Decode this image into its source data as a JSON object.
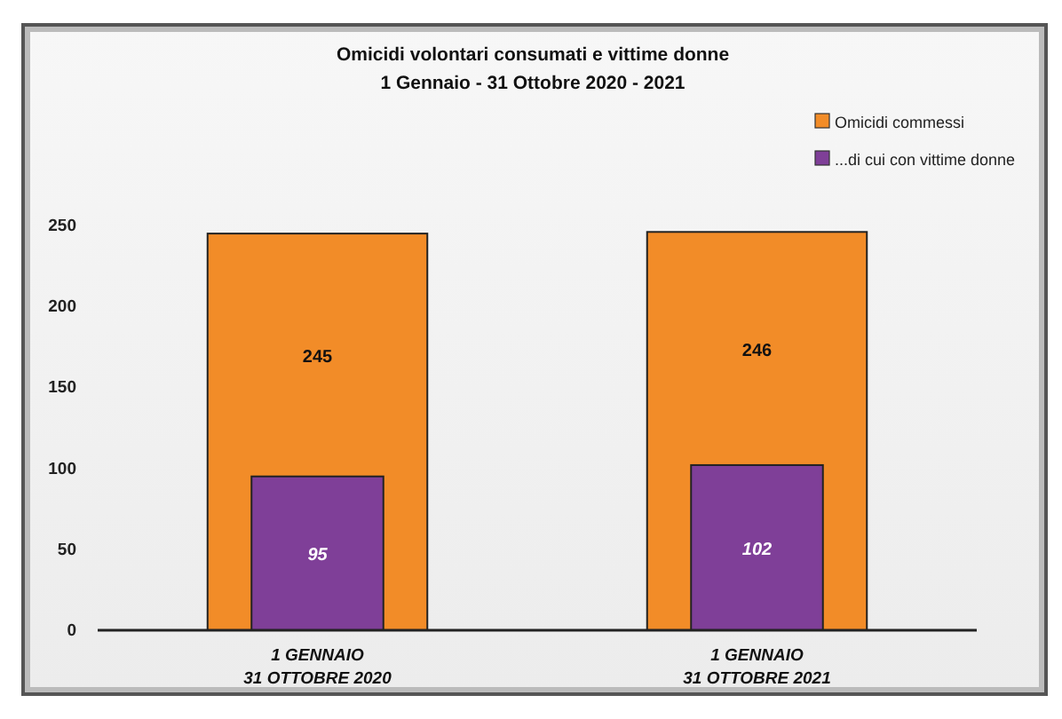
{
  "chart_data": {
    "type": "bar",
    "title": "Omicidi volontari consumati e vittime donne",
    "subtitle": "1 Gennaio  - 31 Ottobre 2020 - 2021",
    "categories": [
      "1 GENNAIO\n31 OTTOBRE 2020",
      "1 GENNAIO\n31 OTTOBRE 2021"
    ],
    "series": [
      {
        "name": "Omicidi commessi",
        "color": "#f28c28",
        "values": [
          245,
          246
        ]
      },
      {
        "name": "...di cui con vittime donne",
        "color": "#7f3f98",
        "values": [
          95,
          102
        ]
      }
    ],
    "ylim": [
      0,
      250
    ],
    "yticks": [
      0,
      50,
      100,
      150,
      200,
      250
    ],
    "data_labels": true,
    "legend": "top right",
    "grid": false
  }
}
